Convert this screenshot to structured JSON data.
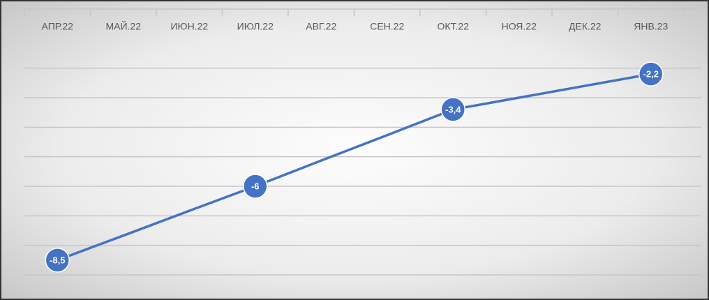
{
  "chart_data": {
    "type": "line",
    "categories": [
      "АПР.22",
      "МАЙ.22",
      "ИЮН.22",
      "ИЮЛ.22",
      "АВГ.22",
      "СЕН.22",
      "ОКТ.22",
      "НОЯ.22",
      "ДЕК.22",
      "ЯНВ.23"
    ],
    "series": [
      {
        "color": "#4472c4",
        "values": [
          -8.5,
          -7.67,
          -6.83,
          -6,
          -5.13,
          -4.27,
          -3.4,
          -3.0,
          -2.6,
          -2.2
        ],
        "value_labels": [
          "-8,5",
          null,
          null,
          "-6",
          null,
          null,
          "-3,4",
          null,
          null,
          "-2,2"
        ]
      }
    ],
    "ylim": [
      -9,
      0
    ],
    "yticks": [
      -9,
      -8,
      -7,
      -6,
      -5,
      -4,
      -3,
      -2,
      0
    ],
    "grid": true
  }
}
